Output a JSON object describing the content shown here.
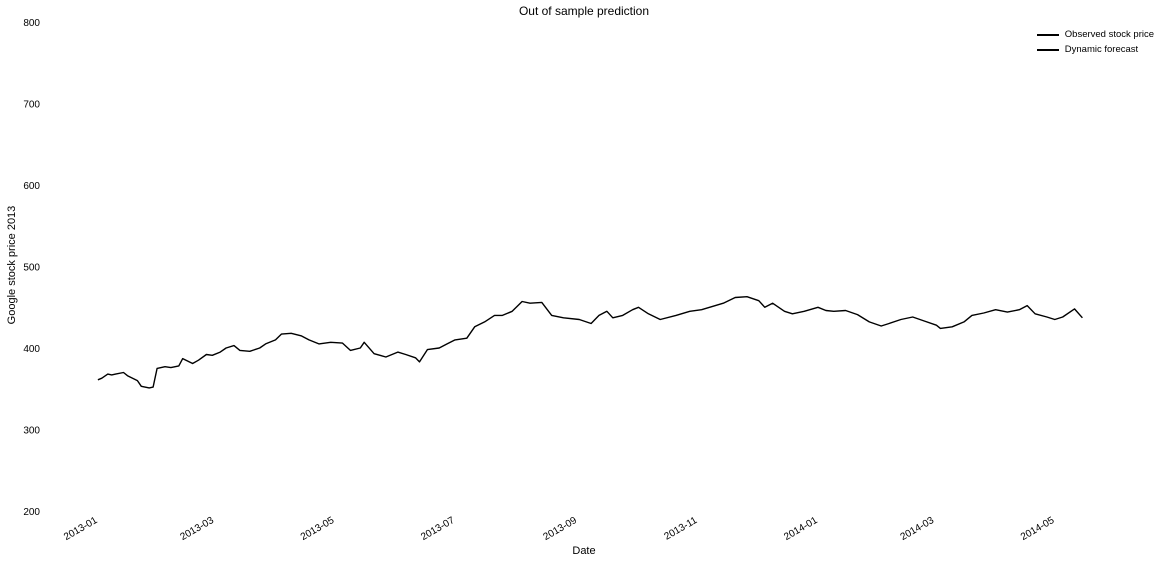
{
  "chart_data": {
    "type": "line",
    "title": "Out of sample prediction",
    "xlabel": "Date",
    "ylabel": "Google stock price 2013",
    "x_ticks": [
      "2013-01",
      "2013-03",
      "2013-05",
      "2013-07",
      "2013-09",
      "2013-11",
      "2014-01",
      "2014-03",
      "2014-05"
    ],
    "y_ticks": [
      200,
      300,
      400,
      500,
      600,
      700,
      800
    ],
    "ylim": [
      200,
      800
    ],
    "xlim": [
      "2012-12-29",
      "2014-05-31"
    ],
    "grid": false,
    "legend_position": "top-right",
    "series": [
      {
        "name": "Observed stock price",
        "color": "#000000",
        "style": "solid",
        "points": [
          [
            "2013-01-02",
            361
          ],
          [
            "2013-01-04",
            363
          ],
          [
            "2013-01-07",
            368
          ],
          [
            "2013-01-09",
            367
          ],
          [
            "2013-01-11",
            368
          ],
          [
            "2013-01-15",
            370
          ],
          [
            "2013-01-17",
            366
          ],
          [
            "2013-01-22",
            360
          ],
          [
            "2013-01-24",
            353
          ],
          [
            "2013-01-28",
            351
          ],
          [
            "2013-01-30",
            352
          ],
          [
            "2013-02-01",
            375
          ],
          [
            "2013-02-05",
            377
          ],
          [
            "2013-02-08",
            376
          ],
          [
            "2013-02-12",
            378
          ],
          [
            "2013-02-14",
            387
          ],
          [
            "2013-02-19",
            381
          ],
          [
            "2013-02-22",
            385
          ],
          [
            "2013-02-26",
            392
          ],
          [
            "2013-03-01",
            391
          ],
          [
            "2013-03-05",
            395
          ],
          [
            "2013-03-08",
            400
          ],
          [
            "2013-03-12",
            403
          ],
          [
            "2013-03-15",
            397
          ],
          [
            "2013-03-20",
            396
          ],
          [
            "2013-03-25",
            400
          ],
          [
            "2013-03-28",
            405
          ],
          [
            "2013-04-02",
            410
          ],
          [
            "2013-04-05",
            417
          ],
          [
            "2013-04-10",
            418
          ],
          [
            "2013-04-15",
            415
          ],
          [
            "2013-04-19",
            410
          ],
          [
            "2013-04-24",
            405
          ],
          [
            "2013-04-30",
            407
          ],
          [
            "2013-05-06",
            406
          ],
          [
            "2013-05-10",
            397
          ],
          [
            "2013-05-15",
            400
          ],
          [
            "2013-05-17",
            407
          ],
          [
            "2013-05-22",
            393
          ],
          [
            "2013-05-28",
            389
          ],
          [
            "2013-06-03",
            395
          ],
          [
            "2013-06-07",
            392
          ],
          [
            "2013-06-12",
            388
          ],
          [
            "2013-06-14",
            383
          ],
          [
            "2013-06-18",
            398
          ],
          [
            "2013-06-24",
            400
          ],
          [
            "2013-06-28",
            405
          ],
          [
            "2013-07-02",
            410
          ],
          [
            "2013-07-08",
            412
          ],
          [
            "2013-07-12",
            426
          ],
          [
            "2013-07-17",
            432
          ],
          [
            "2013-07-22",
            440
          ],
          [
            "2013-07-26",
            440
          ],
          [
            "2013-07-31",
            445
          ],
          [
            "2013-08-05",
            457
          ],
          [
            "2013-08-09",
            455
          ],
          [
            "2013-08-15",
            456
          ],
          [
            "2013-08-20",
            440
          ],
          [
            "2013-08-26",
            437
          ],
          [
            "2013-09-03",
            435
          ],
          [
            "2013-09-09",
            430
          ],
          [
            "2013-09-13",
            440
          ],
          [
            "2013-09-17",
            445
          ],
          [
            "2013-09-20",
            437
          ],
          [
            "2013-09-25",
            440
          ],
          [
            "2013-09-30",
            447
          ],
          [
            "2013-10-03",
            450
          ],
          [
            "2013-10-08",
            442
          ],
          [
            "2013-10-14",
            435
          ],
          [
            "2013-10-22",
            440
          ],
          [
            "2013-10-29",
            445
          ],
          [
            "2013-11-04",
            447
          ],
          [
            "2013-11-11",
            452
          ],
          [
            "2013-11-15",
            455
          ],
          [
            "2013-11-21",
            462
          ],
          [
            "2013-11-27",
            463
          ],
          [
            "2013-12-03",
            458
          ],
          [
            "2013-12-06",
            450
          ],
          [
            "2013-12-10",
            455
          ],
          [
            "2013-12-16",
            445
          ],
          [
            "2013-12-20",
            442
          ],
          [
            "2013-12-26",
            445
          ],
          [
            "2014-01-02",
            450
          ],
          [
            "2014-01-06",
            446
          ],
          [
            "2014-01-10",
            445
          ],
          [
            "2014-01-16",
            446
          ],
          [
            "2014-01-22",
            441
          ],
          [
            "2014-01-28",
            432
          ],
          [
            "2014-02-03",
            427
          ],
          [
            "2014-02-07",
            430
          ],
          [
            "2014-02-13",
            435
          ],
          [
            "2014-02-19",
            438
          ],
          [
            "2014-02-25",
            433
          ],
          [
            "2014-03-03",
            428
          ],
          [
            "2014-03-05",
            424
          ],
          [
            "2014-03-11",
            426
          ],
          [
            "2014-03-17",
            432
          ],
          [
            "2014-03-21",
            440
          ],
          [
            "2014-03-27",
            443
          ],
          [
            "2014-04-02",
            447
          ],
          [
            "2014-04-08",
            444
          ],
          [
            "2014-04-14",
            447
          ],
          [
            "2014-04-18",
            452
          ],
          [
            "2014-04-22",
            442
          ],
          [
            "2014-04-28",
            438
          ],
          [
            "2014-05-02",
            435
          ],
          [
            "2014-05-06",
            438
          ],
          [
            "2014-05-12",
            448
          ],
          [
            "2014-05-16",
            437
          ]
        ]
      },
      {
        "name": "Dynamic forecast",
        "color": "#000000",
        "style": "solid",
        "points": []
      }
    ],
    "confidence_band": {
      "style": "dashed",
      "upper": [],
      "lower": []
    }
  }
}
